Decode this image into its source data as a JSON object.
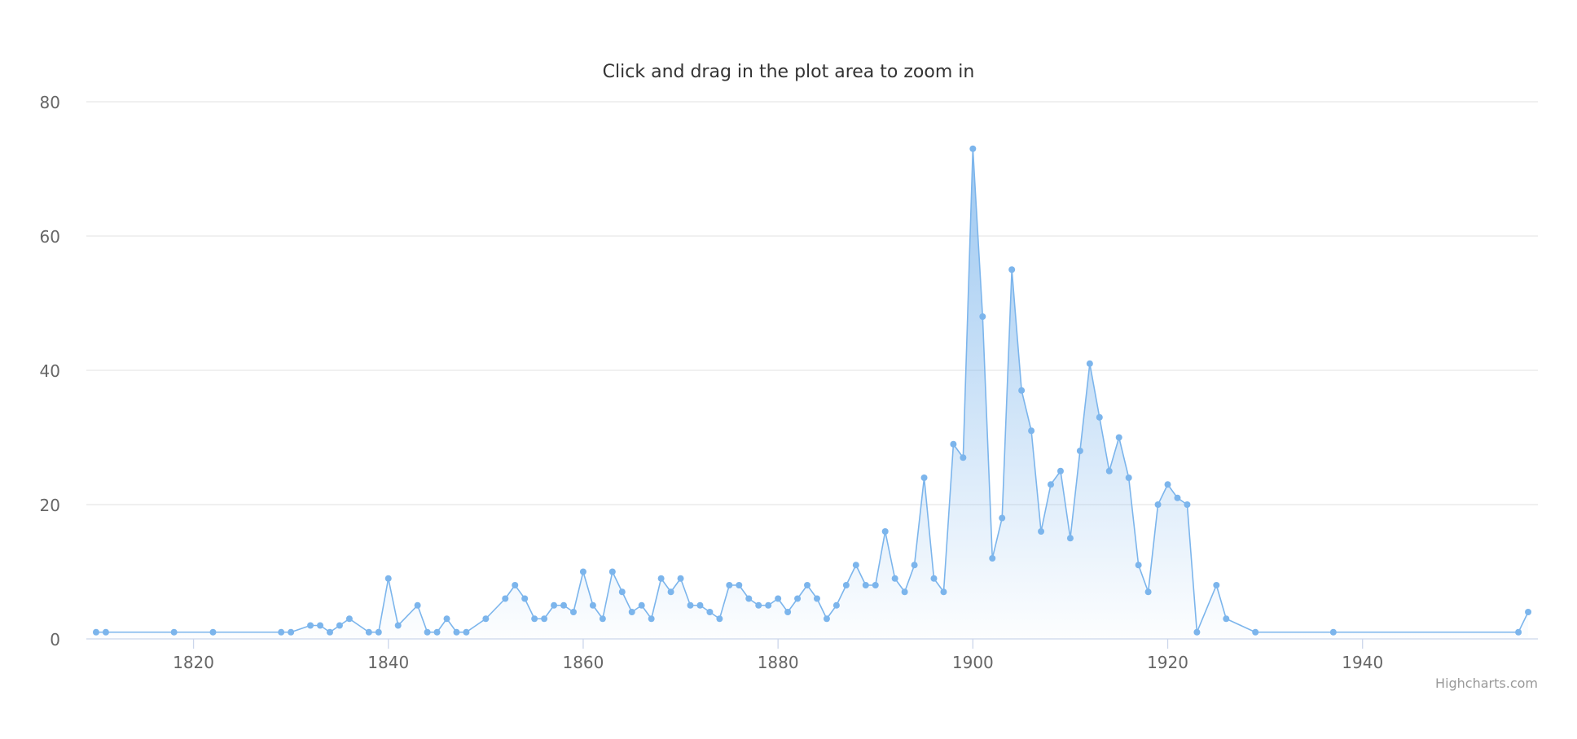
{
  "chart_data": {
    "type": "area",
    "title": "Click and drag in the plot area to zoom in",
    "subtitle": "",
    "xlabel": "",
    "ylabel": "",
    "xlim": [
      1809,
      1958
    ],
    "ylim": [
      0,
      80
    ],
    "x_ticks": [
      1820,
      1840,
      1860,
      1880,
      1900,
      1920,
      1940
    ],
    "y_ticks": [
      0,
      20,
      40,
      60,
      80
    ],
    "grid": "horizontal",
    "legend": "none",
    "credits": "Highcharts.com",
    "colors": {
      "series": "#7cb5ec",
      "grid": "#e6e6e6",
      "axis": "#ccd6eb",
      "title": "#333333",
      "tick_label": "#666666",
      "credits": "#999999"
    },
    "series": [
      {
        "x": [
          1810,
          1811,
          1818,
          1822,
          1829,
          1830,
          1832,
          1833,
          1834,
          1835,
          1836,
          1838,
          1839,
          1840,
          1841,
          1843,
          1844,
          1845,
          1846,
          1847,
          1848,
          1850,
          1852,
          1853,
          1854,
          1855,
          1856,
          1857,
          1858,
          1859,
          1860,
          1861,
          1862,
          1863,
          1864,
          1865,
          1866,
          1867,
          1868,
          1869,
          1870,
          1871,
          1872,
          1873,
          1874,
          1875,
          1876,
          1877,
          1878,
          1879,
          1880,
          1881,
          1882,
          1883,
          1884,
          1885,
          1886,
          1887,
          1888,
          1889,
          1890,
          1891,
          1892,
          1893,
          1894,
          1895,
          1896,
          1897,
          1898,
          1899,
          1900,
          1901,
          1902,
          1903,
          1904,
          1905,
          1906,
          1907,
          1908,
          1909,
          1910,
          1911,
          1912,
          1913,
          1914,
          1915,
          1916,
          1917,
          1918,
          1919,
          1920,
          1921,
          1922,
          1923,
          1925,
          1926,
          1929,
          1937,
          1956,
          1957
        ],
        "y": [
          1,
          1,
          1,
          1,
          1,
          1,
          2,
          2,
          1,
          2,
          3,
          1,
          1,
          9,
          2,
          5,
          1,
          1,
          3,
          1,
          1,
          3,
          6,
          8,
          6,
          3,
          3,
          5,
          5,
          4,
          10,
          5,
          3,
          10,
          7,
          4,
          5,
          3,
          9,
          7,
          9,
          5,
          5,
          4,
          3,
          8,
          8,
          6,
          5,
          5,
          6,
          4,
          6,
          8,
          6,
          3,
          5,
          8,
          11,
          8,
          8,
          16,
          9,
          7,
          11,
          24,
          9,
          7,
          29,
          27,
          73,
          48,
          12,
          18,
          55,
          37,
          31,
          16,
          23,
          25,
          15,
          28,
          41,
          33,
          25,
          30,
          24,
          11,
          7,
          20,
          23,
          21,
          20,
          1,
          8,
          3,
          1,
          1,
          1,
          4
        ]
      }
    ]
  }
}
